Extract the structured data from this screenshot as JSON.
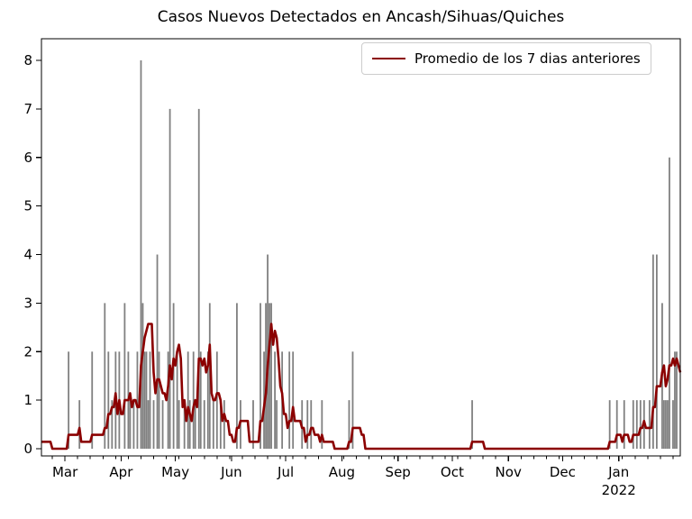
{
  "title": "Casos Nuevos Detectados en Ancash/Sihuas/Quiches",
  "legend": {
    "label": "Promedio de los 7 dias anteriores",
    "position": "upper right"
  },
  "colors": {
    "bars": "#808080",
    "line": "#8b0000",
    "axes": "#000000",
    "background": "#ffffff",
    "legend_border": "#cccccc"
  },
  "chart_data": {
    "type": "bar",
    "title": "Casos Nuevos Detectados en Ancash/Sihuas/Quiches",
    "xlabel": "",
    "ylabel": "",
    "grid": false,
    "legend_position": "upper right",
    "x_axis": {
      "domain": [
        "2021-02-16",
        "2022-02-04"
      ],
      "major_tick_dates": [
        "2021-03-01",
        "2021-04-01",
        "2021-05-01",
        "2021-06-01",
        "2021-07-01",
        "2021-08-01",
        "2021-09-01",
        "2021-10-01",
        "2021-11-01",
        "2021-12-01",
        "2022-01-01"
      ],
      "major_tick_labels": [
        "Mar",
        "Apr",
        "May",
        "Jun",
        "Jul",
        "Aug",
        "Sep",
        "Oct",
        "Nov",
        "Dec",
        "Jan"
      ],
      "year_label": "2022",
      "year_label_under": "Jan",
      "minor_tick_interval_days": 7,
      "minor_tick_start": "2021-02-22"
    },
    "y_axis": {
      "ticks": [
        0,
        1,
        2,
        3,
        4,
        5,
        6,
        7,
        8
      ],
      "range": [
        -0.15,
        8.45
      ]
    },
    "series": [
      {
        "name": "casos-diarios-bars",
        "type": "bar",
        "color": "#808080",
        "points": [
          [
            "2021-02-15",
            1
          ],
          [
            "2021-03-03",
            2
          ],
          [
            "2021-03-09",
            1
          ],
          [
            "2021-03-16",
            2
          ],
          [
            "2021-03-23",
            3
          ],
          [
            "2021-03-25",
            2
          ],
          [
            "2021-03-27",
            1
          ],
          [
            "2021-03-29",
            2
          ],
          [
            "2021-03-31",
            2
          ],
          [
            "2021-04-03",
            3
          ],
          [
            "2021-04-05",
            2
          ],
          [
            "2021-04-06",
            1
          ],
          [
            "2021-04-08",
            1
          ],
          [
            "2021-04-10",
            2
          ],
          [
            "2021-04-12",
            8
          ],
          [
            "2021-04-13",
            3
          ],
          [
            "2021-04-14",
            2
          ],
          [
            "2021-04-15",
            2
          ],
          [
            "2021-04-16",
            1
          ],
          [
            "2021-04-17",
            2
          ],
          [
            "2021-04-19",
            1
          ],
          [
            "2021-04-21",
            4
          ],
          [
            "2021-04-22",
            2
          ],
          [
            "2021-04-24",
            1
          ],
          [
            "2021-04-27",
            2
          ],
          [
            "2021-04-28",
            7
          ],
          [
            "2021-04-30",
            3
          ],
          [
            "2021-05-02",
            2
          ],
          [
            "2021-05-03",
            1
          ],
          [
            "2021-05-06",
            1
          ],
          [
            "2021-05-08",
            2
          ],
          [
            "2021-05-09",
            1
          ],
          [
            "2021-05-11",
            2
          ],
          [
            "2021-05-12",
            1
          ],
          [
            "2021-05-14",
            7
          ],
          [
            "2021-05-15",
            2
          ],
          [
            "2021-05-17",
            1
          ],
          [
            "2021-05-19",
            2
          ],
          [
            "2021-05-20",
            3
          ],
          [
            "2021-05-22",
            1
          ],
          [
            "2021-05-24",
            2
          ],
          [
            "2021-05-26",
            1
          ],
          [
            "2021-05-28",
            1
          ],
          [
            "2021-06-04",
            3
          ],
          [
            "2021-06-06",
            1
          ],
          [
            "2021-06-13",
            1
          ],
          [
            "2021-06-17",
            3
          ],
          [
            "2021-06-19",
            2
          ],
          [
            "2021-06-20",
            3
          ],
          [
            "2021-06-21",
            4
          ],
          [
            "2021-06-22",
            3
          ],
          [
            "2021-06-23",
            3
          ],
          [
            "2021-06-25",
            2
          ],
          [
            "2021-06-26",
            1
          ],
          [
            "2021-06-29",
            2
          ],
          [
            "2021-07-03",
            2
          ],
          [
            "2021-07-05",
            2
          ],
          [
            "2021-07-10",
            1
          ],
          [
            "2021-07-13",
            1
          ],
          [
            "2021-07-15",
            1
          ],
          [
            "2021-07-21",
            1
          ],
          [
            "2021-08-05",
            1
          ],
          [
            "2021-08-07",
            2
          ],
          [
            "2021-10-12",
            1
          ],
          [
            "2021-12-27",
            1
          ],
          [
            "2021-12-31",
            1
          ],
          [
            "2022-01-04",
            1
          ],
          [
            "2022-01-09",
            1
          ],
          [
            "2022-01-11",
            1
          ],
          [
            "2022-01-13",
            1
          ],
          [
            "2022-01-15",
            1
          ],
          [
            "2022-01-18",
            1
          ],
          [
            "2022-01-20",
            4
          ],
          [
            "2022-01-22",
            4
          ],
          [
            "2022-01-25",
            3
          ],
          [
            "2022-01-26",
            1
          ],
          [
            "2022-01-27",
            1
          ],
          [
            "2022-01-28",
            1
          ],
          [
            "2022-01-29",
            6
          ],
          [
            "2022-01-31",
            1
          ],
          [
            "2022-02-01",
            2
          ],
          [
            "2022-02-02",
            2
          ]
        ]
      },
      {
        "name": "Promedio de los 7 dias anteriores",
        "type": "line",
        "color": "#8b0000",
        "derived_from": "casos-diarios-bars",
        "rule": "trailing 7-day mean (current day and 6 previous days) of the daily bar values"
      }
    ]
  }
}
